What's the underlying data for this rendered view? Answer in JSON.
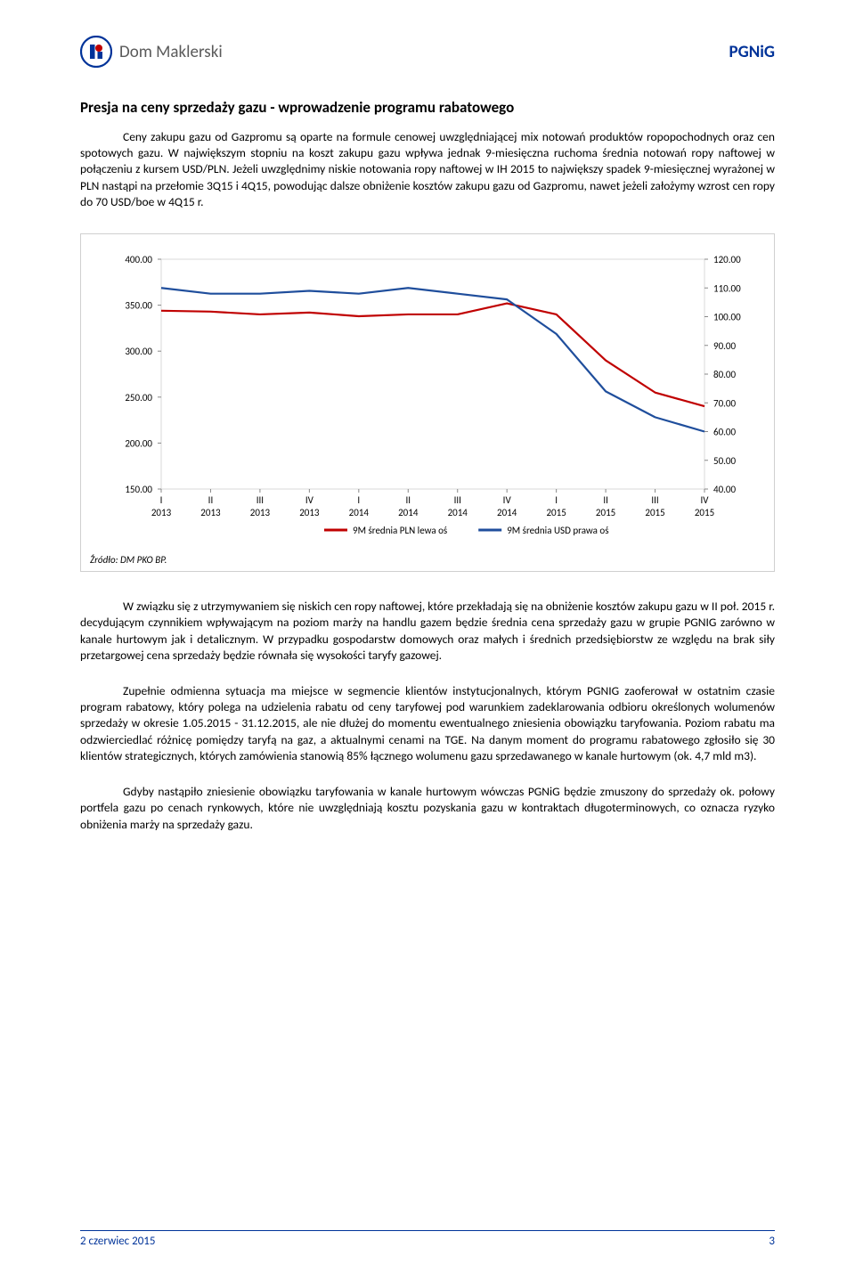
{
  "header": {
    "logo_text": "Dom Maklerski",
    "ticker": "PGNiG"
  },
  "title": "Presja na ceny sprzedaży gazu - wprowadzenie programu rabatowego",
  "para1": "Ceny zakupu gazu od Gazpromu są oparte na formule cenowej uwzględniającej mix notowań produktów ropopochodnych oraz cen spotowych gazu. W największym stopniu na koszt zakupu gazu wpływa jednak 9-miesięczna ruchoma średnia notowań ropy naftowej w połączeniu z kursem USD/PLN. Jeżeli uwzględnimy niskie notowania ropy naftowej w IH 2015 to największy spadek 9-miesięcznej wyrażonej w PLN nastąpi na przełomie 3Q15 i 4Q15, powodując dalsze obniżenie kosztów zakupu gazu od Gazpromu, nawet jeżeli założymy wzrost cen ropy do 70 USD/boe w 4Q15 r.",
  "para2": "W związku się z utrzymywaniem się niskich cen ropy naftowej, które przekładają się na obniżenie  kosztów zakupu gazu w II poł. 2015 r. decydującym czynnikiem wpływającym na poziom marży na  handlu gazem będzie średnia cena sprzedaży gazu w grupie PGNIG zarówno w kanale hurtowym jak i detalicznym. W przypadku gospodarstw domowych oraz małych i średnich przedsiębiorstw ze względu na brak siły przetargowej cena sprzedaży będzie równała się wysokości taryfy gazowej.",
  "para3": "Zupełnie odmienna sytuacja ma miejsce w segmencie klientów  instytucjonalnych, którym PGNIG zaoferował w ostatnim czasie program rabatowy, który polega na udzielenia rabatu od ceny taryfowej pod warunkiem zadeklarowania odbioru  określonych wolumenów sprzedaży w okresie 1.05.2015 - 31.12.2015, ale nie dłużej do momentu ewentualnego zniesienia obowiązku taryfowania. Poziom rabatu ma odzwierciedlać różnicę pomiędzy taryfą na gaz, a aktualnymi cenami na TGE. Na danym moment do programu rabatowego zgłosiło się 30 klientów strategicznych, których zamówienia stanowią 85% łącznego wolumenu gazu sprzedawanego w kanale hurtowym (ok. 4,7 mld m3).",
  "para4": "Gdyby nastąpiło zniesienie obowiązku taryfowania w kanale hurtowym wówczas PGNiG będzie zmuszony do sprzedaży ok. połowy portfela gazu po cenach  rynkowych, które nie uwzględniają  kosztu pozyskania gazu w kontraktach długoterminowych, co oznacza ryzyko obniżenia  marży na sprzedaży gazu.",
  "chart": {
    "type": "line",
    "categories": [
      "I 2013",
      "II 2013",
      "III 2013",
      "IV 2013",
      "I 2014",
      "II 2014",
      "III 2014",
      "IV 2014",
      "I 2015",
      "II 2015",
      "III 2015",
      "IV 2015"
    ],
    "series": [
      {
        "name": "9M średnia PLN lewa oś",
        "color": "#c00000",
        "axis": "left",
        "values": [
          344,
          343,
          340,
          342,
          338,
          340,
          340,
          352,
          340,
          290,
          255,
          240
        ]
      },
      {
        "name": "9M średnia USD prawa oś",
        "color": "#1f4e9c",
        "axis": "right",
        "values": [
          110,
          108,
          108,
          109,
          108,
          110,
          108,
          106,
          94,
          74,
          65,
          60
        ]
      }
    ],
    "left_axis": {
      "min": 150,
      "max": 400,
      "ticks": [
        150,
        200,
        250,
        300,
        350,
        400
      ],
      "labels": [
        "150.00",
        "200.00",
        "250.00",
        "300.00",
        "350.00",
        "400.00"
      ]
    },
    "right_axis": {
      "min": 40,
      "max": 120,
      "ticks": [
        40,
        50,
        60,
        70,
        80,
        90,
        100,
        110,
        120
      ],
      "labels": [
        "40.00",
        "50.00",
        "60.00",
        "70.00",
        "80.00",
        "90.00",
        "100.00",
        "110.00",
        "120.00"
      ]
    },
    "source": "Źródło: DM PKO BP.",
    "legend_labels": [
      "9M średnia PLN lewa oś",
      "9M średnia USD prawa oś"
    ],
    "grid_color": "#d9d9d9",
    "tick_font_size": 11,
    "legend_font_size": 11,
    "line_width": 2.2
  },
  "footer": {
    "date": "2 czerwiec 2015",
    "page_num": "3"
  }
}
